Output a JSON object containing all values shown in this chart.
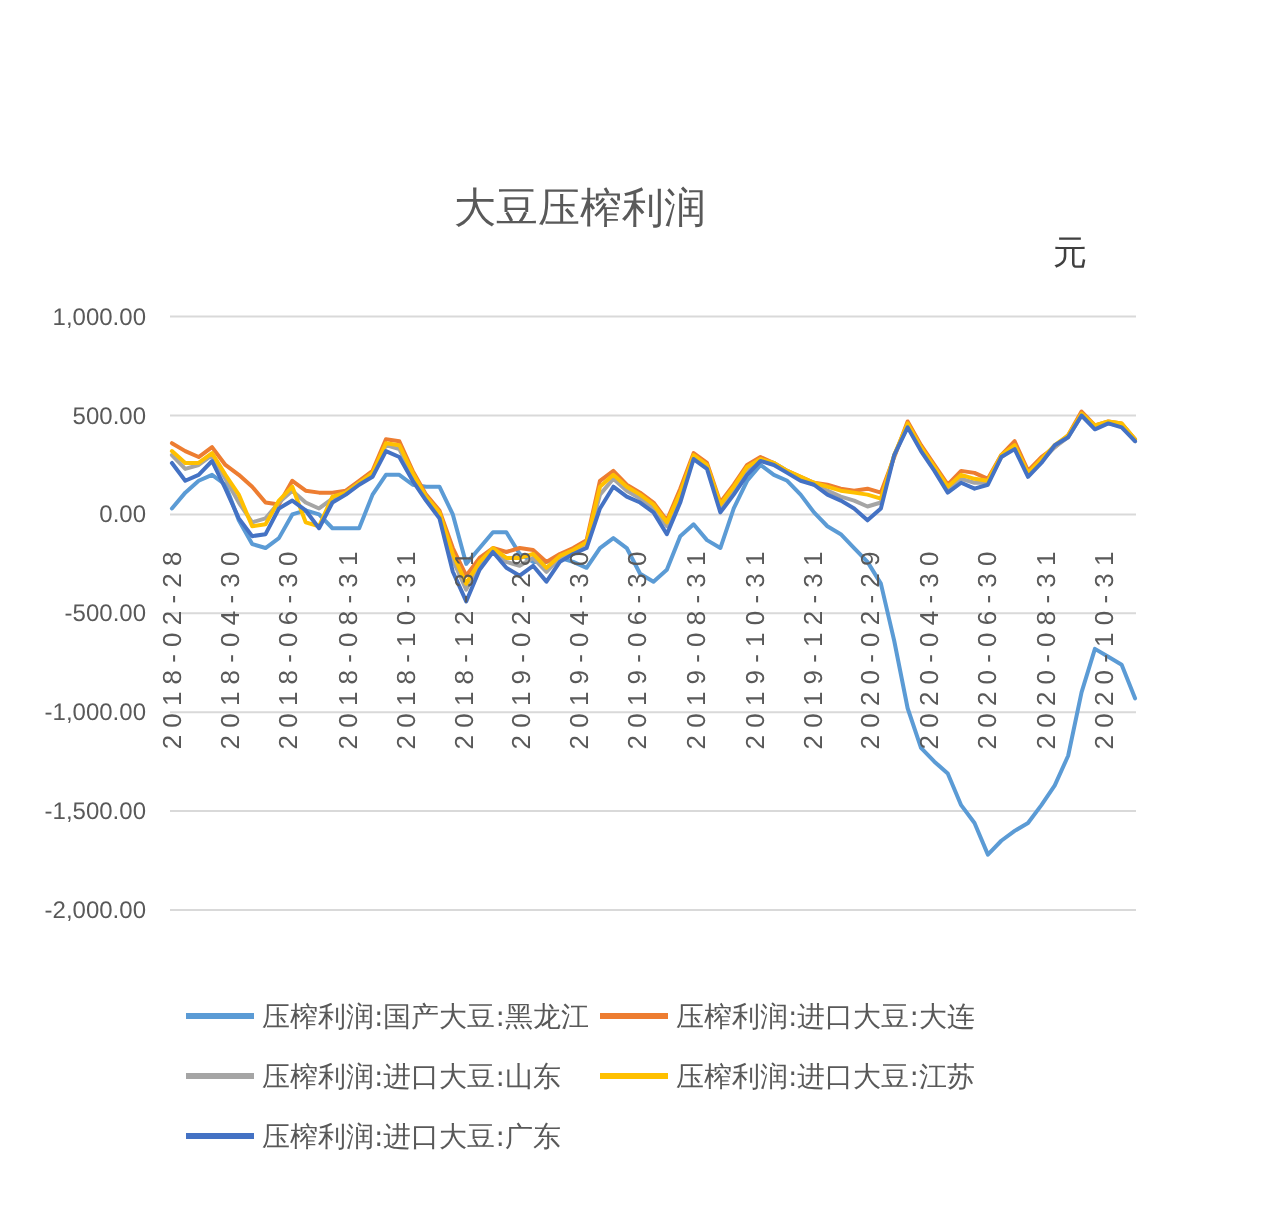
{
  "chart_data": {
    "type": "line",
    "title": "大豆压榨利润",
    "ylabel": "元",
    "x": [
      "2018-02-28",
      "2018-03-14",
      "2018-03-28",
      "2018-04-11",
      "2018-04-25",
      "2018-05-09",
      "2018-05-23",
      "2018-06-06",
      "2018-06-20",
      "2018-07-04",
      "2018-07-18",
      "2018-08-01",
      "2018-08-15",
      "2018-08-29",
      "2018-09-12",
      "2018-09-26",
      "2018-10-10",
      "2018-10-24",
      "2018-11-07",
      "2018-11-21",
      "2018-12-05",
      "2018-12-19",
      "2019-01-02",
      "2019-01-16",
      "2019-01-30",
      "2019-02-13",
      "2019-02-27",
      "2019-03-13",
      "2019-03-27",
      "2019-04-10",
      "2019-04-24",
      "2019-05-08",
      "2019-05-22",
      "2019-06-05",
      "2019-06-19",
      "2019-07-03",
      "2019-07-17",
      "2019-07-31",
      "2019-08-14",
      "2019-08-28",
      "2019-09-11",
      "2019-09-25",
      "2019-10-09",
      "2019-10-23",
      "2019-11-06",
      "2019-11-20",
      "2019-12-04",
      "2019-12-18",
      "2020-01-01",
      "2020-01-15",
      "2020-01-29",
      "2020-02-12",
      "2020-02-26",
      "2020-03-11",
      "2020-03-25",
      "2020-04-08",
      "2020-04-22",
      "2020-05-06",
      "2020-05-20",
      "2020-06-03",
      "2020-06-17",
      "2020-07-01",
      "2020-07-15",
      "2020-07-29",
      "2020-08-12",
      "2020-08-26",
      "2020-09-09",
      "2020-09-23",
      "2020-10-07",
      "2020-10-21",
      "2020-11-04",
      "2020-11-18",
      "2020-12-02"
    ],
    "series": [
      {
        "name": "压榨利润:国产大豆:黑龙江",
        "color": "#5b9bd5",
        "values": [
          30,
          110,
          170,
          200,
          150,
          -30,
          -150,
          -170,
          -120,
          0,
          20,
          0,
          -70,
          -70,
          -70,
          100,
          200,
          200,
          150,
          140,
          140,
          0,
          -250,
          -170,
          -90,
          -90,
          -200,
          -240,
          -240,
          -220,
          -240,
          -270,
          -170,
          -120,
          -170,
          -300,
          -340,
          -280,
          -110,
          -50,
          -130,
          -170,
          30,
          170,
          250,
          200,
          170,
          100,
          10,
          -60,
          -100,
          -170,
          -240,
          -350,
          -640,
          -980,
          -1180,
          -1250,
          -1310,
          -1470,
          -1560,
          -1720,
          -1650,
          -1600,
          -1560,
          -1470,
          -1370,
          -1220,
          -900,
          -680,
          -720,
          -760,
          -930
        ]
      },
      {
        "name": "压榨利润:进口大豆:大连",
        "color": "#ed7d31",
        "values": [
          360,
          320,
          290,
          340,
          250,
          200,
          140,
          60,
          50,
          170,
          120,
          110,
          110,
          120,
          170,
          220,
          380,
          370,
          220,
          100,
          20,
          -170,
          -310,
          -220,
          -170,
          -190,
          -170,
          -180,
          -240,
          -200,
          -170,
          -130,
          170,
          220,
          150,
          110,
          60,
          -30,
          130,
          310,
          260,
          60,
          150,
          250,
          290,
          260,
          220,
          190,
          160,
          150,
          130,
          120,
          130,
          110,
          290,
          470,
          350,
          250,
          150,
          220,
          210,
          180,
          300,
          370,
          220,
          290,
          340,
          400,
          520,
          450,
          470,
          460,
          380
        ]
      },
      {
        "name": "压榨利润:进口大豆:山东",
        "color": "#a5a5a5",
        "values": [
          300,
          230,
          250,
          300,
          180,
          60,
          -40,
          -20,
          60,
          120,
          60,
          30,
          80,
          110,
          160,
          200,
          350,
          330,
          200,
          90,
          0,
          -230,
          -380,
          -250,
          -180,
          -240,
          -260,
          -220,
          -290,
          -220,
          -190,
          -150,
          100,
          180,
          120,
          80,
          30,
          -60,
          90,
          290,
          240,
          30,
          120,
          220,
          270,
          260,
          220,
          180,
          150,
          120,
          90,
          70,
          40,
          60,
          300,
          450,
          330,
          230,
          130,
          180,
          160,
          160,
          290,
          340,
          200,
          270,
          340,
          390,
          500,
          440,
          460,
          450,
          370
        ]
      },
      {
        "name": "压榨利润:进口大豆:江苏",
        "color": "#ffc000",
        "values": [
          320,
          260,
          260,
          310,
          200,
          100,
          -60,
          -50,
          70,
          140,
          -40,
          -60,
          90,
          110,
          160,
          210,
          360,
          350,
          210,
          90,
          10,
          -200,
          -350,
          -240,
          -170,
          -220,
          -220,
          -200,
          -270,
          -210,
          -180,
          -140,
          140,
          200,
          140,
          100,
          50,
          -40,
          110,
          300,
          250,
          50,
          140,
          240,
          280,
          260,
          220,
          190,
          160,
          140,
          120,
          110,
          100,
          80,
          300,
          460,
          340,
          240,
          140,
          200,
          180,
          170,
          300,
          350,
          210,
          280,
          350,
          400,
          510,
          450,
          470,
          460,
          380
        ]
      },
      {
        "name": "压榨利润:进口大豆:广东",
        "color": "#4472c4",
        "values": [
          260,
          170,
          200,
          270,
          130,
          -20,
          -110,
          -100,
          30,
          70,
          20,
          -70,
          60,
          100,
          150,
          190,
          320,
          290,
          170,
          70,
          -20,
          -290,
          -440,
          -280,
          -190,
          -270,
          -310,
          -260,
          -340,
          -240,
          -200,
          -170,
          30,
          140,
          90,
          60,
          10,
          -100,
          60,
          280,
          230,
          10,
          100,
          200,
          270,
          250,
          210,
          170,
          150,
          100,
          70,
          30,
          -30,
          30,
          300,
          440,
          320,
          220,
          110,
          160,
          130,
          150,
          290,
          330,
          190,
          260,
          350,
          390,
          500,
          430,
          460,
          440,
          370
        ]
      }
    ],
    "xlim": [
      "2018-02-26",
      "2020-12-03"
    ],
    "xticks": [
      "2018-02-28",
      "2018-04-30",
      "2018-06-30",
      "2018-08-31",
      "2018-10-31",
      "2018-12-31",
      "2019-02-28",
      "2019-04-30",
      "2019-06-30",
      "2019-08-31",
      "2019-10-31",
      "2019-12-31",
      "2020-02-29",
      "2020-04-30",
      "2020-06-30",
      "2020-08-31",
      "2020-10-31"
    ],
    "ylim": [
      -2000,
      1000
    ],
    "yticks": [
      {
        "value": 1000,
        "label": "1,000.00"
      },
      {
        "value": 500,
        "label": "500.00"
      },
      {
        "value": 0,
        "label": "0.00"
      },
      {
        "value": -500,
        "label": "-500.00"
      },
      {
        "value": -1000,
        "label": "-1,000.00"
      },
      {
        "value": -1500,
        "label": "-1,500.00"
      },
      {
        "value": -2000,
        "label": "-2,000.00"
      }
    ],
    "grid": "y",
    "legend": "bottom"
  }
}
